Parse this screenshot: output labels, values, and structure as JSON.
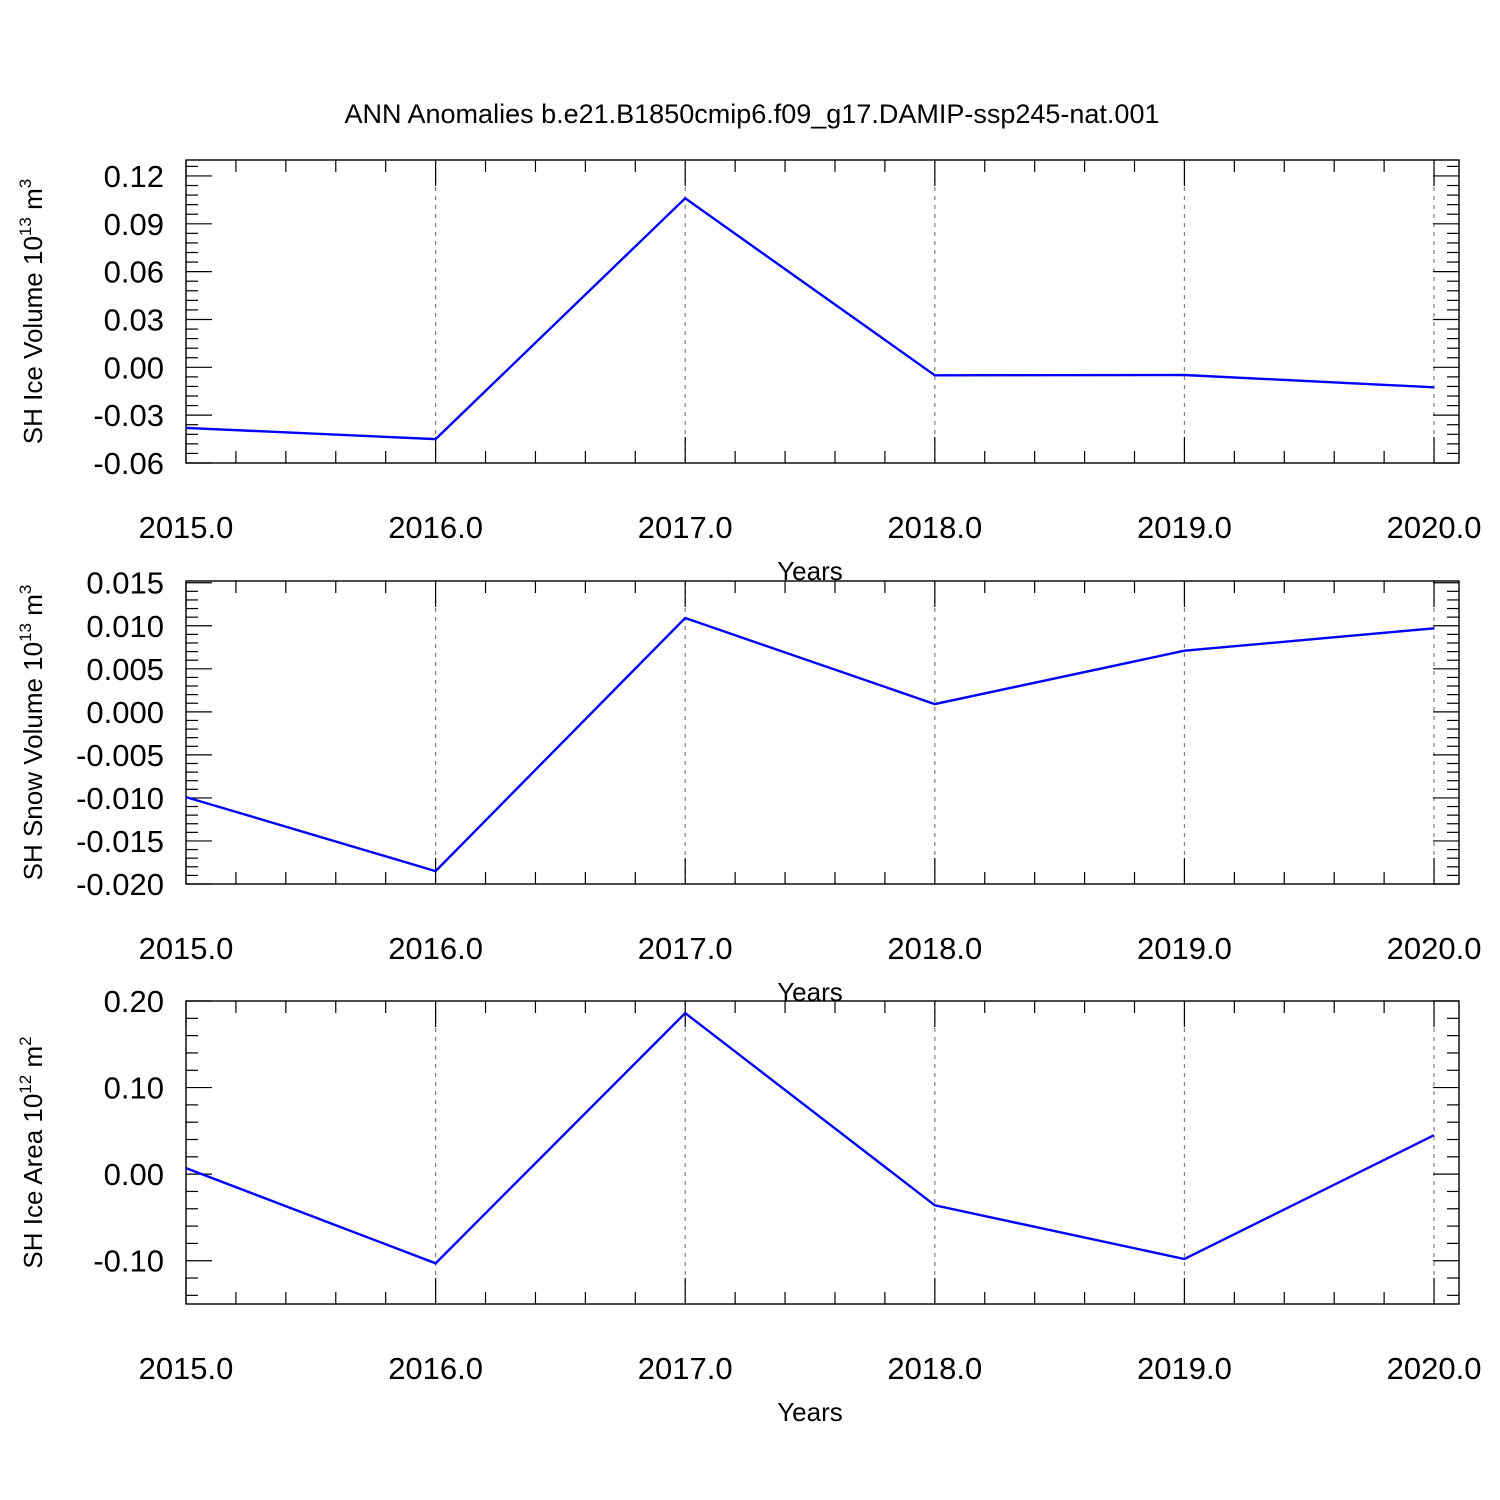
{
  "title": "ANN Anomalies b.e21.B1850cmip6.f09_g17.DAMIP-ssp245-nat.001",
  "colors": {
    "line": "#0000ff",
    "axis": "#000000",
    "grid": "#808080"
  },
  "chart_data": [
    {
      "type": "line",
      "xlabel": "Years",
      "ylabel": {
        "prefix": "SH Ice Volume 10",
        "exp": "13",
        "unit": " m",
        "unit_exp": "3"
      },
      "xlim": [
        2015.0,
        2020.1
      ],
      "ylim": [
        -0.06,
        0.13
      ],
      "x_ticks": [
        "2015.0",
        "2016.0",
        "2017.0",
        "2018.0",
        "2019.0",
        "2020.0"
      ],
      "y_ticks": [
        "-0.06",
        "-0.03",
        "0.00",
        "0.03",
        "0.06",
        "0.09",
        "0.12"
      ],
      "grid": "vertical dashed at major x ticks",
      "x": [
        2015,
        2016,
        2017,
        2018,
        2019,
        2020
      ],
      "y": [
        -0.038,
        -0.045,
        0.106,
        -0.005,
        -0.0048,
        -0.0125
      ]
    },
    {
      "type": "line",
      "xlabel": "Years",
      "ylabel": {
        "prefix": "SH Snow Volume 10",
        "exp": "13",
        "unit": " m",
        "unit_exp": "3"
      },
      "xlim": [
        2015.0,
        2020.1
      ],
      "ylim": [
        -0.02,
        0.0152
      ],
      "x_ticks": [
        "2015.0",
        "2016.0",
        "2017.0",
        "2018.0",
        "2019.0",
        "2020.0"
      ],
      "y_ticks": [
        "-0.020",
        "-0.015",
        "-0.010",
        "-0.005",
        "0.000",
        "0.005",
        "0.010",
        "0.015"
      ],
      "grid": "vertical dashed at major x ticks",
      "x": [
        2015,
        2016,
        2017,
        2018,
        2019,
        2020
      ],
      "y": [
        -0.0099,
        -0.0185,
        0.0109,
        0.0009,
        0.0071,
        0.0097
      ]
    },
    {
      "type": "line",
      "xlabel": "Years",
      "ylabel": {
        "prefix": "SH Ice Area 10",
        "exp": "12",
        "unit": " m",
        "unit_exp": "2"
      },
      "xlim": [
        2015.0,
        2020.1
      ],
      "ylim": [
        -0.15,
        0.2
      ],
      "x_ticks": [
        "2015.0",
        "2016.0",
        "2017.0",
        "2018.0",
        "2019.0",
        "2020.0"
      ],
      "y_ticks": [
        "-0.10",
        "0.00",
        "0.10",
        "0.20"
      ],
      "grid": "vertical dashed at major x ticks",
      "x": [
        2015,
        2016,
        2017,
        2018,
        2019,
        2020
      ],
      "y": [
        0.007,
        -0.103,
        0.186,
        -0.036,
        -0.098,
        0.045
      ]
    }
  ]
}
